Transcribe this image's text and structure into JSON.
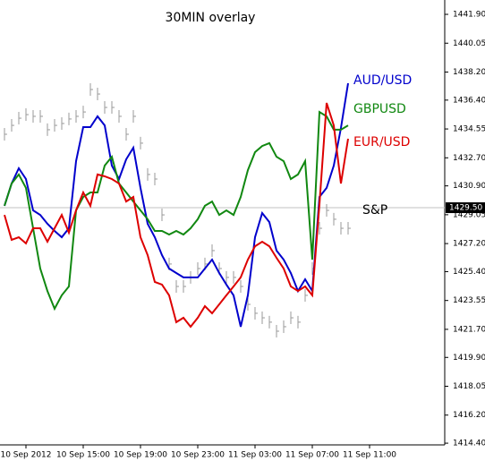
{
  "chart_data": {
    "type": "line",
    "title": "30MIN overlay",
    "x": [
      0,
      1,
      2,
      3,
      4,
      5,
      6,
      7,
      8,
      9,
      10,
      11,
      12,
      13,
      14,
      15,
      16,
      17,
      18,
      19,
      20,
      21,
      22,
      23,
      24,
      25,
      26,
      27,
      28,
      29,
      30,
      31,
      32,
      33,
      34,
      35,
      36,
      37,
      38,
      39,
      40,
      41,
      42,
      43,
      44,
      45,
      46,
      47,
      48
    ],
    "xlim": [
      -0.625,
      61.5
    ],
    "xticks": [
      {
        "value": 3,
        "label": "10 Sep 2012"
      },
      {
        "value": 11,
        "label": "10 Sep 15:00"
      },
      {
        "value": 19,
        "label": "10 Sep 19:00"
      },
      {
        "value": 27,
        "label": "10 Sep 23:00"
      },
      {
        "value": 35,
        "label": "11 Sep 03:00"
      },
      {
        "value": 43,
        "label": "11 Sep 07:00"
      },
      {
        "value": 51,
        "label": "11 Sep 11:00"
      }
    ],
    "ylim": [
      1414.29,
      1442.82
    ],
    "yticks": [
      {
        "value": 1441.9,
        "label": "1441.90"
      },
      1440.05,
      {
        "value": 1438.2,
        "label": "1438.20"
      },
      {
        "value": 1436.4,
        "label": "1436.40"
      },
      1434.55,
      {
        "value": 1432.7,
        "label": "1432.70"
      },
      {
        "value": 1430.9,
        "label": "1430.90"
      },
      1429.05,
      {
        "value": 1427.2,
        "label": "1427.20"
      },
      {
        "value": 1425.4,
        "label": "1425.40"
      },
      1423.55,
      {
        "value": 1421.7,
        "label": "1421.70"
      },
      {
        "value": 1419.9,
        "label": "1419.90"
      },
      1418.05,
      {
        "value": 1416.2,
        "label": "1416.20"
      },
      {
        "value": 1414.4,
        "label": "1414.40"
      }
    ],
    "current_price": {
      "value": 1429.5,
      "label": "1429.50"
    },
    "series": [
      {
        "name": "AUD/USD",
        "color": "#0000cc",
        "style": "line",
        "values": [
          1429.62,
          1431.05,
          1432.03,
          1431.34,
          1429.33,
          1429.04,
          1428.47,
          1428.01,
          1427.61,
          1428.18,
          1432.49,
          1434.67,
          1434.67,
          1435.36,
          1434.78,
          1432.2,
          1431.34,
          1432.6,
          1433.35,
          1430.77,
          1428.47,
          1427.61,
          1426.46,
          1425.6,
          1425.31,
          1425.03,
          1425.03,
          1425.03,
          1425.6,
          1426.17,
          1425.31,
          1424.57,
          1423.88,
          1421.87,
          1423.88,
          1427.61,
          1429.16,
          1428.58,
          1426.75,
          1426.17,
          1425.31,
          1424.16,
          1424.91,
          1424.16,
          1430.19,
          1430.77,
          1432.2,
          1434.61,
          1437.48
        ]
      },
      {
        "name": "GBPUSD",
        "color": "#118811",
        "style": "line",
        "values": [
          1429.62,
          1431.05,
          1431.63,
          1430.77,
          1428.18,
          1425.6,
          1424.16,
          1423.02,
          1423.88,
          1424.45,
          1429.33,
          1430.19,
          1430.48,
          1430.48,
          1432.2,
          1432.77,
          1431.05,
          1430.48,
          1429.9,
          1429.33,
          1428.76,
          1428.01,
          1428.01,
          1427.78,
          1428.01,
          1427.78,
          1428.18,
          1428.76,
          1429.62,
          1429.9,
          1429.04,
          1429.33,
          1429.04,
          1430.19,
          1431.91,
          1433.06,
          1433.46,
          1433.64,
          1432.77,
          1432.49,
          1431.34,
          1431.63,
          1432.49,
          1426.17,
          1435.64,
          1435.36,
          1434.5,
          1434.5,
          1434.78
        ]
      },
      {
        "name": "EUR/USD",
        "color": "#dd0000",
        "style": "line",
        "values": [
          1429.04,
          1427.44,
          1427.61,
          1427.21,
          1428.18,
          1428.18,
          1427.32,
          1428.18,
          1429.04,
          1427.9,
          1429.33,
          1430.48,
          1429.62,
          1431.63,
          1431.51,
          1431.34,
          1431.05,
          1429.9,
          1430.19,
          1427.61,
          1426.46,
          1424.74,
          1424.57,
          1423.88,
          1422.16,
          1422.44,
          1421.87,
          1422.44,
          1423.19,
          1422.73,
          1423.3,
          1423.88,
          1424.45,
          1425.03,
          1426.17,
          1427.03,
          1427.32,
          1427.03,
          1426.29,
          1425.6,
          1424.45,
          1424.16,
          1424.45,
          1423.88,
          1429.73,
          1436.22,
          1434.78,
          1431.05,
          1433.92
        ]
      },
      {
        "name": "S&P",
        "color": "#999999",
        "style": "bars",
        "values": [
          1434.21,
          1434.78,
          1435.24,
          1435.47,
          1435.36,
          1435.36,
          1434.5,
          1434.78,
          1434.9,
          1435.19,
          1435.36,
          1435.64,
          1437.08,
          1436.79,
          1435.93,
          1435.93,
          1435.36,
          1434.21,
          1435.36,
          1433.64,
          1431.63,
          1431.34,
          1429.04,
          1425.89,
          1424.45,
          1424.45,
          1425.03,
          1425.6,
          1425.89,
          1426.75,
          1425.6,
          1425.03,
          1425.03,
          1424.45,
          1423.3,
          1422.73,
          1422.44,
          1422.16,
          1421.58,
          1421.87,
          1422.44,
          1422.16,
          1423.88,
          1425.6,
          1428.18,
          1429.33,
          1428.76,
          1428.18,
          1428.18
        ]
      }
    ]
  }
}
